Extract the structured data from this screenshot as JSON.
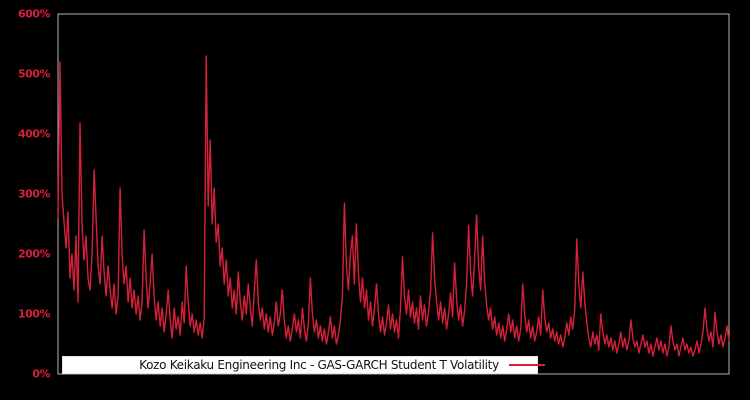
{
  "figure": {
    "background": "#000000"
  },
  "chart_data": {
    "type": "line",
    "title": "",
    "xlabel": "",
    "ylabel": "",
    "ylim": [
      0,
      600
    ],
    "yticks_percent": [
      0,
      100,
      200,
      300,
      400,
      500,
      600
    ],
    "ytick_suffix": "%",
    "x_tick_labels_visible": false,
    "grid": false,
    "legend": {
      "position": "lower center",
      "label": "Kozo Keikaku Engineering Inc - GAS-GARCH Student T Volatility",
      "swatch": "red-line",
      "background": "#ffffff",
      "text_color": "#111111"
    },
    "colors": {
      "series": "#d6203a",
      "tick_label": "#d6203a",
      "plot_border": "#b3b3b3",
      "plot_background": "#000000"
    },
    "series": [
      {
        "name": "Kozo Keikaku Engineering Inc - GAS-GARCH Student T Volatility",
        "unit": "percent",
        "values_percent": [
          260,
          520,
          300,
          255,
          210,
          270,
          160,
          200,
          140,
          230,
          120,
          418,
          250,
          190,
          230,
          160,
          140,
          200,
          340,
          260,
          180,
          150,
          230,
          170,
          130,
          180,
          140,
          110,
          150,
          100,
          130,
          310,
          200,
          150,
          180,
          120,
          160,
          110,
          140,
          100,
          130,
          90,
          120,
          240,
          160,
          110,
          150,
          200,
          130,
          90,
          120,
          80,
          110,
          70,
          100,
          140,
          90,
          60,
          110,
          75,
          95,
          65,
          120,
          85,
          180,
          120,
          80,
          100,
          70,
          90,
          65,
          85,
          60,
          95,
          530,
          280,
          390,
          250,
          310,
          220,
          250,
          180,
          210,
          150,
          190,
          130,
          160,
          110,
          140,
          100,
          170,
          120,
          90,
          130,
          100,
          150,
          110,
          80,
          140,
          190,
          120,
          90,
          110,
          75,
          100,
          70,
          95,
          65,
          85,
          120,
          80,
          100,
          140,
          90,
          60,
          80,
          55,
          75,
          100,
          70,
          90,
          60,
          110,
          75,
          55,
          85,
          160,
          100,
          70,
          90,
          60,
          80,
          55,
          75,
          50,
          70,
          95,
          60,
          80,
          50,
          65,
          90,
          130,
          285,
          180,
          140,
          200,
          230,
          150,
          250,
          170,
          120,
          160,
          110,
          140,
          90,
          120,
          80,
          110,
          150,
          100,
          70,
          95,
          65,
          85,
          115,
          75,
          100,
          70,
          90,
          60,
          110,
          195,
          130,
          100,
          140,
          95,
          120,
          85,
          110,
          75,
          130,
          90,
          115,
          80,
          105,
          140,
          235,
          160,
          120,
          90,
          120,
          85,
          110,
          75,
          100,
          135,
          95,
          185,
          125,
          90,
          115,
          80,
          105,
          150,
          248,
          170,
          130,
          190,
          265,
          180,
          140,
          230,
          155,
          115,
          90,
          110,
          75,
          95,
          65,
          85,
          60,
          80,
          55,
          75,
          100,
          70,
          90,
          60,
          80,
          55,
          75,
          150,
          100,
          70,
          90,
          60,
          80,
          55,
          70,
          95,
          65,
          140,
          95,
          70,
          85,
          60,
          75,
          55,
          70,
          50,
          65,
          45,
          60,
          85,
          65,
          95,
          75,
          110,
          225,
          150,
          110,
          170,
          120,
          85,
          60,
          45,
          70,
          50,
          65,
          40,
          100,
          70,
          50,
          65,
          45,
          60,
          40,
          55,
          35,
          50,
          70,
          45,
          60,
          40,
          55,
          90,
          60,
          45,
          55,
          35,
          50,
          65,
          45,
          55,
          35,
          50,
          30,
          45,
          60,
          40,
          55,
          35,
          50,
          30,
          45,
          80,
          55,
          40,
          50,
          30,
          45,
          60,
          40,
          50,
          35,
          45,
          30,
          40,
          55,
          35,
          50,
          70,
          110,
          75,
          55,
          70,
          45,
          103,
          70,
          50,
          65,
          45,
          60,
          80,
          55
        ]
      }
    ]
  }
}
